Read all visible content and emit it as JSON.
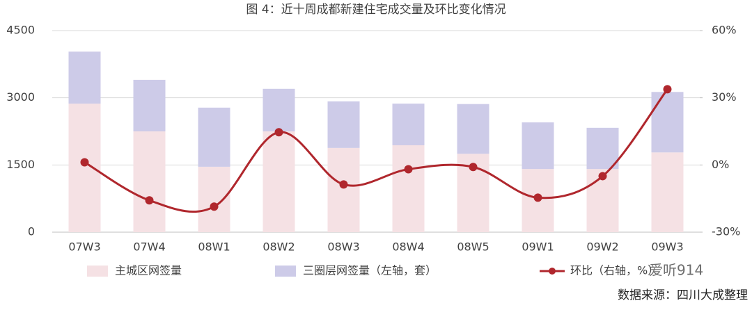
{
  "chart_data": {
    "type": "bar",
    "stacked": true,
    "title": "图 4：近十周成都新建住宅成交量及环比变化情况",
    "categories": [
      "07W3",
      "07W4",
      "08W1",
      "08W2",
      "08W3",
      "08W4",
      "08W5",
      "09W1",
      "09W2",
      "09W3"
    ],
    "series": [
      {
        "name": "主城区网签量",
        "color": "#f5e1e4",
        "values": [
          2870,
          2250,
          1460,
          2250,
          1880,
          1940,
          1750,
          1410,
          1410,
          1780
        ]
      },
      {
        "name": "三圈层网签量（左轴，套）",
        "color": "#cdcbe8",
        "values": [
          1160,
          1150,
          1320,
          950,
          1040,
          930,
          1110,
          1040,
          920,
          1350
        ]
      },
      {
        "name": "环比（右轴，%）",
        "type": "line",
        "axis": "y2",
        "color": "#b0272d",
        "values": [
          1.2,
          -15.8,
          -18.6,
          14.6,
          -8.7,
          -1.9,
          -0.9,
          -14.6,
          -5.0,
          33.8
        ]
      }
    ],
    "ylim": [
      0,
      4500
    ],
    "yticks": [
      0,
      1500,
      3000,
      4500
    ],
    "y2lim": [
      -30,
      60
    ],
    "y2ticks": [
      {
        "value": -30,
        "label": "-30%"
      },
      {
        "value": 0,
        "label": "0%"
      },
      {
        "value": 30,
        "label": "30%"
      },
      {
        "value": 60,
        "label": "60%"
      }
    ],
    "grid": true,
    "source": "数据来源：四川大成整理",
    "watermark": "爱听914"
  }
}
